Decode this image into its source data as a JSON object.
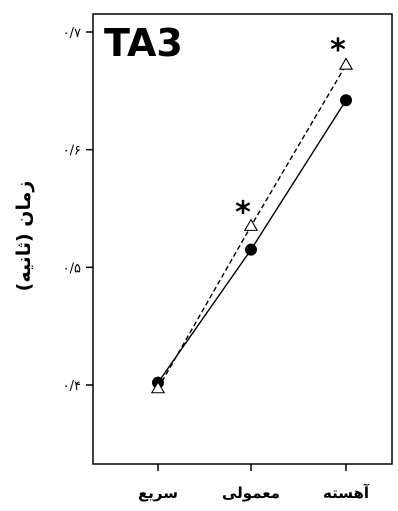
{
  "chart_data": {
    "type": "line",
    "title": "TA3",
    "ylabel": "زمان (ثانیه)",
    "xlabel": "",
    "categories": [
      "سریع",
      "معمولی",
      "آهسته"
    ],
    "y_ticks": [
      0.4,
      0.5,
      0.6,
      0.7
    ],
    "y_tick_labels": [
      "۰/۴",
      "۰/۵",
      "۰/۶",
      "۰/۷"
    ],
    "ylim": [
      0.3,
      0.72
    ],
    "grid": false,
    "series": [
      {
        "marker": "filled-circle",
        "line_style": "solid",
        "color": "#000000",
        "values": [
          0.402,
          0.515,
          0.642
        ]
      },
      {
        "marker": "open-triangle",
        "line_style": "dashed",
        "color": "#000000",
        "values": [
          0.397,
          0.535,
          0.672
        ]
      }
    ],
    "annotations": [
      {
        "text": "*",
        "category_index": 1,
        "y": 0.557
      },
      {
        "text": "*",
        "category_index": 2,
        "y": 0.695
      }
    ]
  }
}
